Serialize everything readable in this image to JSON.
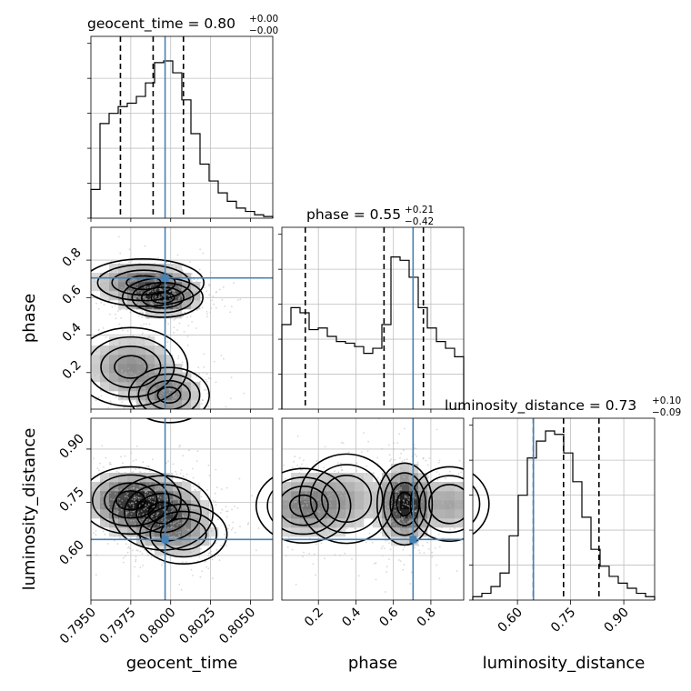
{
  "chart_data": {
    "type": "corner",
    "parameters": [
      "geocent_time",
      "phase",
      "luminosity_distance"
    ],
    "truths": {
      "geocent_time": 0.79965,
      "phase": 0.705,
      "luminosity_distance": 0.645
    },
    "colors": {
      "truth": "#4682b4",
      "hist": "#000000",
      "grid": "#bfbfbf",
      "points": "#b8b8b8"
    },
    "titles": [
      {
        "param": "geocent_time",
        "text": "geocent_time = 0.80",
        "plus": "+0.00",
        "minus": "−0.00"
      },
      {
        "param": "phase",
        "text": "phase = 0.55",
        "plus": "+0.21",
        "minus": "−0.42"
      },
      {
        "param": "luminosity_distance",
        "text": "luminosity_distance = 0.73",
        "plus": "+0.10",
        "minus": "−0.09"
      }
    ],
    "ranges": {
      "geocent_time": [
        0.795,
        0.8064
      ],
      "phase": [
        0.005,
        0.975
      ],
      "luminosity_distance": [
        0.474,
        0.987
      ]
    },
    "quantiles": {
      "geocent_time": [
        0.79685,
        0.7989,
        0.8008
      ],
      "phase": [
        0.13,
        0.55,
        0.76
      ],
      "luminosity_distance": [
        0.645,
        0.73,
        0.83
      ]
    },
    "ticks": {
      "geocent_time": {
        "values": [
          0.795,
          0.7975,
          0.8,
          0.8025,
          0.805
        ],
        "labels": [
          "0.7950",
          "0.7975",
          "0.8000",
          "0.8025",
          "0.8050"
        ]
      },
      "phase": {
        "values": [
          0.2,
          0.4,
          0.6,
          0.8
        ],
        "labels": [
          "0.2",
          "0.4",
          "0.6",
          "0.8"
        ]
      },
      "luminosity_distance": {
        "values": [
          0.6,
          0.75,
          0.9
        ],
        "labels": [
          "0.60",
          "0.75",
          "0.90"
        ]
      }
    },
    "histograms": {
      "geocent_time": [
        0.17,
        0.56,
        0.62,
        0.66,
        0.68,
        0.72,
        0.8,
        0.92,
        0.93,
        0.86,
        0.7,
        0.5,
        0.32,
        0.22,
        0.15,
        0.1,
        0.06,
        0.04,
        0.02,
        0.01
      ],
      "phase": [
        0.5,
        0.6,
        0.57,
        0.47,
        0.48,
        0.43,
        0.4,
        0.39,
        0.37,
        0.33,
        0.36,
        0.5,
        0.9,
        0.88,
        0.78,
        0.6,
        0.48,
        0.4,
        0.36,
        0.31
      ],
      "luminosity_distance": [
        0.02,
        0.04,
        0.08,
        0.16,
        0.38,
        0.62,
        0.84,
        0.94,
        1.0,
        0.98,
        0.87,
        0.7,
        0.49,
        0.3,
        0.2,
        0.14,
        0.1,
        0.07,
        0.04,
        0.02
      ]
    },
    "density_blobs": {
      "phase_vs_geocent_time": [
        {
          "cx": 0.7983,
          "cy": 0.68,
          "sx": 0.0018,
          "sy": 0.06,
          "w": 0.7
        },
        {
          "cx": 0.7995,
          "cy": 0.6,
          "sx": 0.0012,
          "sy": 0.05,
          "w": 1.0
        },
        {
          "cx": 0.7975,
          "cy": 0.23,
          "sx": 0.0017,
          "sy": 0.1,
          "w": 0.55
        },
        {
          "cx": 0.7999,
          "cy": 0.08,
          "sx": 0.0012,
          "sy": 0.07,
          "w": 0.6
        }
      ],
      "luminosity_distance_vs_geocent_time": [
        {
          "cx": 0.7975,
          "cy": 0.755,
          "sx": 0.0015,
          "sy": 0.045,
          "w": 1.0
        },
        {
          "cx": 0.7995,
          "cy": 0.72,
          "sx": 0.0015,
          "sy": 0.05,
          "w": 0.8
        },
        {
          "cx": 0.8008,
          "cy": 0.66,
          "sx": 0.0013,
          "sy": 0.04,
          "w": 0.35
        }
      ],
      "luminosity_distance_vs_phase": [
        {
          "cx": 0.66,
          "cy": 0.745,
          "sx": 0.07,
          "sy": 0.055,
          "w": 1.0
        },
        {
          "cx": 0.12,
          "cy": 0.74,
          "sx": 0.12,
          "sy": 0.05,
          "w": 0.5
        },
        {
          "cx": 0.35,
          "cy": 0.76,
          "sx": 0.12,
          "sy": 0.06,
          "w": 0.3
        },
        {
          "cx": 0.9,
          "cy": 0.745,
          "sx": 0.1,
          "sy": 0.05,
          "w": 0.35
        }
      ]
    }
  }
}
